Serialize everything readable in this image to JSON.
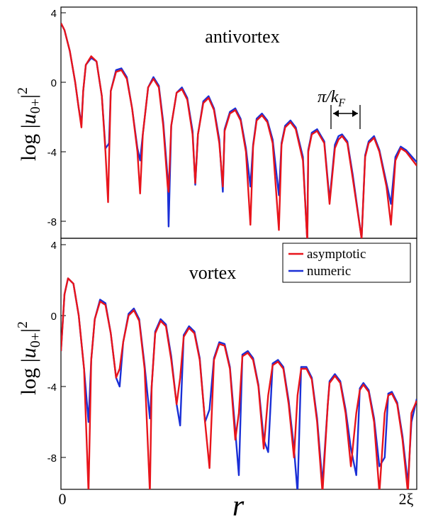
{
  "chart_data": [
    {
      "type": "line",
      "panel": "top",
      "annotation": "antivortex",
      "ylabel": "log |u₀₊|²",
      "ylim": [
        -9,
        4.2
      ],
      "yticks": [
        "4",
        "0",
        "-4",
        "-8"
      ],
      "xlim": [
        0,
        2
      ],
      "series": [
        {
          "name": "asymptotic",
          "color": "#e8141b",
          "x": [
            0,
            0.02,
            0.05,
            0.08,
            0.1,
            0.115,
            0.125,
            0.14,
            0.17,
            0.2,
            0.23,
            0.25,
            0.265,
            0.27,
            0.28,
            0.31,
            0.34,
            0.37,
            0.4,
            0.43,
            0.445,
            0.46,
            0.49,
            0.52,
            0.55,
            0.575,
            0.6,
            0.605,
            0.62,
            0.65,
            0.68,
            0.71,
            0.74,
            0.755,
            0.77,
            0.8,
            0.83,
            0.86,
            0.89,
            0.91,
            0.92,
            0.95,
            0.98,
            1.01,
            1.04,
            1.065,
            1.08,
            1.1,
            1.13,
            1.16,
            1.19,
            1.225,
            1.24,
            1.26,
            1.29,
            1.32,
            1.36,
            1.385,
            1.39,
            1.41,
            1.44,
            1.48,
            1.51,
            1.54,
            1.56,
            1.58,
            1.61,
            1.64,
            1.69,
            1.71,
            1.73,
            1.76,
            1.79,
            1.83,
            1.855,
            1.88,
            1.91,
            1.94,
            2.0
          ],
          "y": [
            3.4,
            3.0,
            1.8,
            0.0,
            -1.5,
            -2.6,
            -0.5,
            1.0,
            1.5,
            1.2,
            -0.8,
            -4.0,
            -6.9,
            -4.5,
            -0.5,
            0.6,
            0.7,
            0.2,
            -1.5,
            -4.0,
            -6.4,
            -3.0,
            -0.3,
            0.2,
            -0.3,
            -2.5,
            -6.0,
            -6.3,
            -2.5,
            -0.6,
            -0.4,
            -1.0,
            -3.0,
            -5.8,
            -3.0,
            -1.2,
            -0.9,
            -1.6,
            -3.5,
            -6.0,
            -2.8,
            -1.8,
            -1.6,
            -2.2,
            -4.0,
            -8.2,
            -3.7,
            -2.2,
            -1.9,
            -2.3,
            -3.5,
            -8.5,
            -3.6,
            -2.6,
            -2.3,
            -2.7,
            -4.5,
            -9.2,
            -4.0,
            -3.0,
            -2.8,
            -3.5,
            -7.0,
            -3.8,
            -3.3,
            -3.1,
            -3.5,
            -5.5,
            -9.0,
            -4.3,
            -3.5,
            -3.2,
            -4.0,
            -6.0,
            -8.2,
            -4.5,
            -3.8,
            -4.0,
            -4.8
          ]
        },
        {
          "name": "numeric",
          "color": "#1a2fd6",
          "x": [
            0,
            0.02,
            0.05,
            0.08,
            0.1,
            0.115,
            0.125,
            0.14,
            0.17,
            0.2,
            0.23,
            0.25,
            0.265,
            0.27,
            0.28,
            0.31,
            0.34,
            0.37,
            0.4,
            0.43,
            0.445,
            0.46,
            0.49,
            0.52,
            0.55,
            0.575,
            0.6,
            0.605,
            0.62,
            0.65,
            0.68,
            0.71,
            0.74,
            0.755,
            0.77,
            0.8,
            0.83,
            0.86,
            0.89,
            0.91,
            0.92,
            0.95,
            0.98,
            1.01,
            1.04,
            1.065,
            1.08,
            1.1,
            1.13,
            1.16,
            1.19,
            1.225,
            1.24,
            1.26,
            1.29,
            1.32,
            1.36,
            1.385,
            1.39,
            1.41,
            1.44,
            1.48,
            1.51,
            1.54,
            1.56,
            1.58,
            1.61,
            1.64,
            1.69,
            1.71,
            1.73,
            1.76,
            1.79,
            1.83,
            1.855,
            1.88,
            1.91,
            1.94,
            2.0
          ],
          "y": [
            3.4,
            3.0,
            1.8,
            0.0,
            -1.5,
            -2.4,
            -0.5,
            1.0,
            1.4,
            1.2,
            -0.8,
            -3.8,
            -3.6,
            -3.5,
            -0.5,
            0.7,
            0.8,
            0.3,
            -1.5,
            -3.8,
            -4.5,
            -3.0,
            -0.3,
            0.3,
            -0.2,
            -2.3,
            -5.5,
            -8.3,
            -2.5,
            -0.6,
            -0.3,
            -0.9,
            -2.8,
            -5.9,
            -3.0,
            -1.1,
            -0.8,
            -1.5,
            -3.3,
            -6.3,
            -2.7,
            -1.7,
            -1.5,
            -2.1,
            -3.8,
            -6.0,
            -3.6,
            -2.1,
            -1.8,
            -2.2,
            -3.3,
            -6.5,
            -3.5,
            -2.5,
            -2.2,
            -2.6,
            -4.3,
            -9.2,
            -3.9,
            -2.9,
            -2.7,
            -3.4,
            -6.8,
            -3.6,
            -3.1,
            -3.0,
            -3.4,
            -5.3,
            -9.0,
            -4.2,
            -3.4,
            -3.1,
            -3.9,
            -5.8,
            -7.0,
            -4.3,
            -3.7,
            -3.9,
            -4.6
          ]
        }
      ]
    },
    {
      "type": "line",
      "panel": "bottom",
      "annotation": "vortex",
      "ylabel": "log |u₀₊|²",
      "xlabel": "r",
      "ylim": [
        -10,
        4.2
      ],
      "yticks": [
        "4",
        "0",
        "-4",
        "-8"
      ],
      "xlim": [
        0,
        2
      ],
      "xticks": [
        "0",
        "2ξ"
      ],
      "legend": {
        "placement": "top-right",
        "entries": [
          "asymptotic",
          "numeric"
        ]
      },
      "series": [
        {
          "name": "asymptotic",
          "color": "#e8141b",
          "x": [
            0,
            0.02,
            0.04,
            0.07,
            0.1,
            0.13,
            0.155,
            0.17,
            0.19,
            0.22,
            0.25,
            0.28,
            0.31,
            0.33,
            0.35,
            0.38,
            0.41,
            0.44,
            0.47,
            0.5,
            0.51,
            0.53,
            0.56,
            0.59,
            0.62,
            0.65,
            0.67,
            0.69,
            0.72,
            0.75,
            0.78,
            0.81,
            0.835,
            0.86,
            0.89,
            0.92,
            0.95,
            0.98,
            1.0,
            1.02,
            1.05,
            1.08,
            1.11,
            1.14,
            1.165,
            1.19,
            1.22,
            1.25,
            1.28,
            1.31,
            1.33,
            1.35,
            1.38,
            1.41,
            1.44,
            1.47,
            1.5,
            1.51,
            1.54,
            1.57,
            1.6,
            1.63,
            1.66,
            1.68,
            1.7,
            1.73,
            1.76,
            1.79,
            1.82,
            1.84,
            1.86,
            1.89,
            1.92,
            1.95,
            1.97,
            2.0
          ],
          "y": [
            -2.0,
            1.2,
            2.1,
            1.8,
            0.0,
            -3.0,
            -10.0,
            -2.5,
            -0.2,
            0.8,
            0.6,
            -1.0,
            -3.5,
            -3.0,
            -1.5,
            0.0,
            0.3,
            -0.3,
            -3.0,
            -10.0,
            -4.0,
            -1.0,
            -0.3,
            -0.6,
            -2.5,
            -5.0,
            -3.5,
            -1.2,
            -0.7,
            -1.0,
            -2.5,
            -6.0,
            -8.6,
            -2.5,
            -1.6,
            -1.7,
            -3.0,
            -7.0,
            -5.5,
            -2.3,
            -2.1,
            -2.5,
            -4.0,
            -7.5,
            -4.5,
            -2.8,
            -2.6,
            -3.0,
            -5.0,
            -8.0,
            -4.5,
            -3.0,
            -3.0,
            -3.6,
            -6.0,
            -10.0,
            -5.0,
            -3.8,
            -3.4,
            -3.8,
            -5.5,
            -8.5,
            -5.5,
            -4.2,
            -3.9,
            -4.3,
            -6.0,
            -10.0,
            -5.5,
            -4.5,
            -4.4,
            -5.0,
            -7.0,
            -10.0,
            -5.5,
            -4.8
          ]
        },
        {
          "name": "numeric",
          "color": "#1a2fd6",
          "x": [
            0,
            0.02,
            0.04,
            0.07,
            0.1,
            0.13,
            0.155,
            0.17,
            0.19,
            0.22,
            0.25,
            0.28,
            0.31,
            0.33,
            0.35,
            0.38,
            0.41,
            0.44,
            0.47,
            0.5,
            0.51,
            0.53,
            0.56,
            0.59,
            0.62,
            0.65,
            0.67,
            0.69,
            0.72,
            0.75,
            0.78,
            0.81,
            0.835,
            0.86,
            0.89,
            0.92,
            0.95,
            0.98,
            1.0,
            1.02,
            1.05,
            1.08,
            1.11,
            1.14,
            1.165,
            1.19,
            1.22,
            1.25,
            1.28,
            1.31,
            1.33,
            1.35,
            1.38,
            1.41,
            1.44,
            1.47,
            1.5,
            1.51,
            1.54,
            1.57,
            1.6,
            1.63,
            1.66,
            1.68,
            1.7,
            1.73,
            1.76,
            1.79,
            1.82,
            1.84,
            1.86,
            1.89,
            1.92,
            1.95,
            1.97,
            2.0
          ],
          "y": [
            -2.0,
            1.2,
            2.1,
            1.8,
            0.0,
            -3.0,
            -6.0,
            -2.5,
            -0.2,
            0.9,
            0.7,
            -1.0,
            -3.5,
            -4.0,
            -1.5,
            0.1,
            0.4,
            -0.2,
            -2.8,
            -5.8,
            -4.0,
            -0.9,
            -0.2,
            -0.5,
            -2.3,
            -5.0,
            -6.2,
            -1.1,
            -0.6,
            -0.9,
            -2.4,
            -6.0,
            -5.3,
            -2.4,
            -1.5,
            -1.6,
            -2.9,
            -6.5,
            -9.0,
            -2.2,
            -2.0,
            -2.4,
            -3.9,
            -7.0,
            -7.7,
            -2.7,
            -2.5,
            -2.9,
            -4.8,
            -7.5,
            -10.0,
            -2.9,
            -2.9,
            -3.5,
            -5.8,
            -9.5,
            -5.0,
            -3.7,
            -3.3,
            -3.7,
            -5.3,
            -7.5,
            -9.0,
            -4.1,
            -3.8,
            -4.2,
            -5.8,
            -8.5,
            -8.0,
            -4.4,
            -4.3,
            -4.9,
            -6.8,
            -9.5,
            -6.0,
            -4.7
          ]
        }
      ]
    }
  ],
  "annotations": {
    "pi_over_kF": "π/k",
    "pi_over_kF_sub": "F"
  }
}
